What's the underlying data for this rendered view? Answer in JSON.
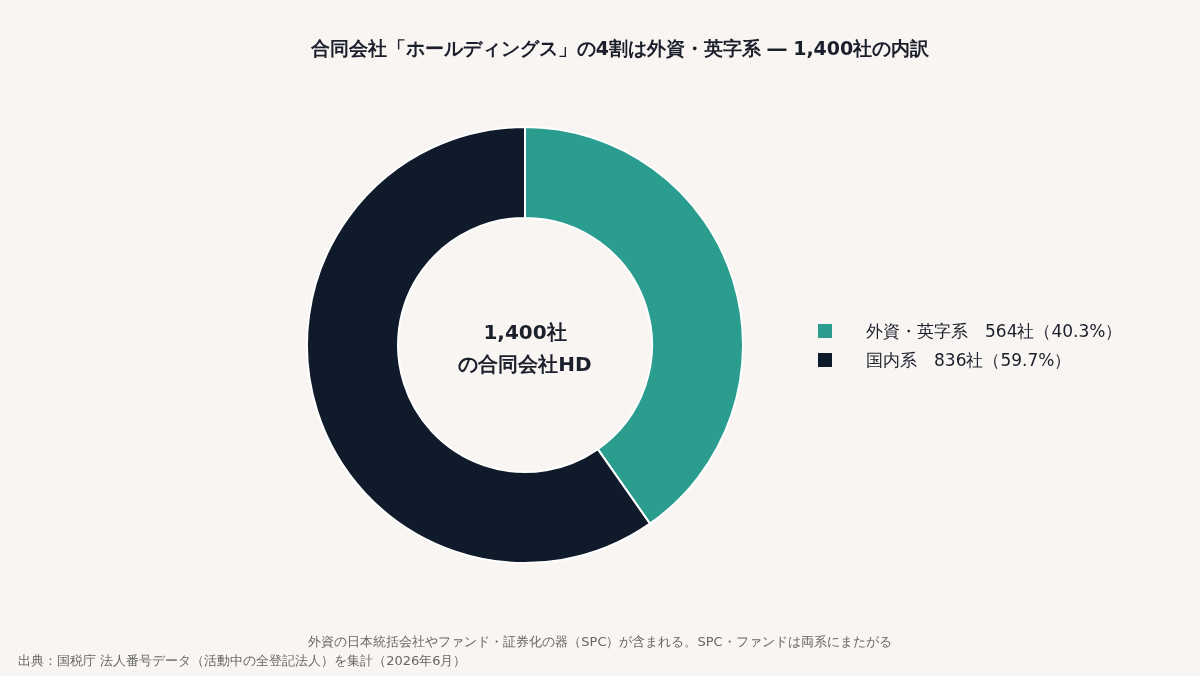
{
  "chart_data": {
    "type": "donut",
    "title": "合同会社「ホールディングス」の4割は外資・英字系 ― 1,400社の内訳",
    "categories": [
      "外資・英字系",
      "国内系"
    ],
    "values": [
      564,
      836
    ],
    "value_labels": [
      "564社（40.3%）",
      "836社（59.7%）"
    ],
    "colors": [
      "#2a9d8f",
      "#0f1a2b"
    ],
    "legend": "right",
    "annotations": [
      "1,400社",
      "の合同会社HD",
      "外資の日本統括会社やファンド・証券化の器（SPC）が含まれる。SPC・ファンドは両系にまたがる",
      "出典：国税庁 法人番号データ（活動中の全登記法人）を集計（2026年6月）"
    ]
  }
}
